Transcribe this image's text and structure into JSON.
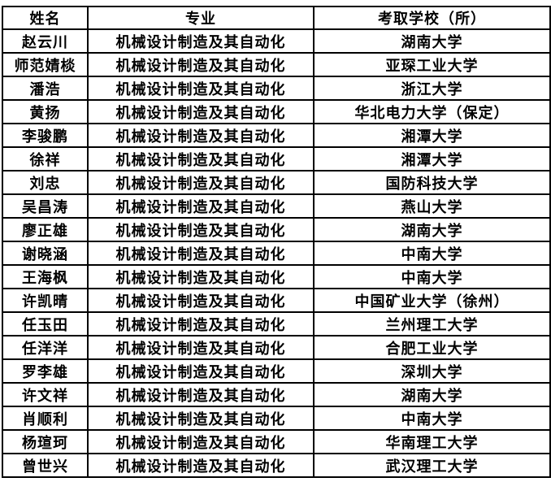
{
  "page": {
    "background_color": "#ffffff",
    "border_color": "#000000",
    "text_color": "#000000"
  },
  "table": {
    "headers": [
      {
        "label": "姓名"
      },
      {
        "label": "专业"
      },
      {
        "label": "考取学校（所）"
      }
    ],
    "rows": [
      {
        "name": "赵云川",
        "major": "机械设计制造及其自动化",
        "school": "湖南大学"
      },
      {
        "name": "师范婧棪",
        "major": "机械设计制造及其自动化",
        "school": "亚琛工业大学"
      },
      {
        "name": "潘浩",
        "major": "机械设计制造及其自动化",
        "school": "浙江大学"
      },
      {
        "name": "黄扬",
        "major": "机械设计制造及其自动化",
        "school": "华北电力大学（保定）"
      },
      {
        "name": "李骏鹏",
        "major": "机械设计制造及其自动化",
        "school": "湘潭大学"
      },
      {
        "name": "徐祥",
        "major": "机械设计制造及其自动化",
        "school": "湘潭大学"
      },
      {
        "name": "刘忠",
        "major": "机械设计制造及其自动化",
        "school": "国防科技大学"
      },
      {
        "name": "吴昌涛",
        "major": "机械设计制造及其自动化",
        "school": "燕山大学"
      },
      {
        "name": "廖正雄",
        "major": "机械设计制造及其自动化",
        "school": "湖南大学"
      },
      {
        "name": "谢晓涵",
        "major": "机械设计制造及其自动化",
        "school": "中南大学"
      },
      {
        "name": "王海枫",
        "major": "机械设计制造及其自动化",
        "school": "中南大学"
      },
      {
        "name": "许凯晴",
        "major": "机械设计制造及其自动化",
        "school": "中国矿业大学（徐州）"
      },
      {
        "name": "任玉田",
        "major": "机械设计制造及其自动化",
        "school": "兰州理工大学"
      },
      {
        "name": "任洋洋",
        "major": "机械设计制造及其自动化",
        "school": "合肥工业大学"
      },
      {
        "name": "罗李雄",
        "major": "机械设计制造及其自动化",
        "school": "深圳大学"
      },
      {
        "name": "许文祥",
        "major": "机械设计制造及其自动化",
        "school": "湖南大学"
      },
      {
        "name": "肖顺利",
        "major": "机械设计制造及其自动化",
        "school": "中南大学"
      },
      {
        "name": "杨瑄珂",
        "major": "机械设计制造及其自动化",
        "school": "华南理工大学"
      },
      {
        "name": "曾世兴",
        "major": "机械设计制造及其自动化",
        "school": "武汉理工大学"
      }
    ]
  }
}
